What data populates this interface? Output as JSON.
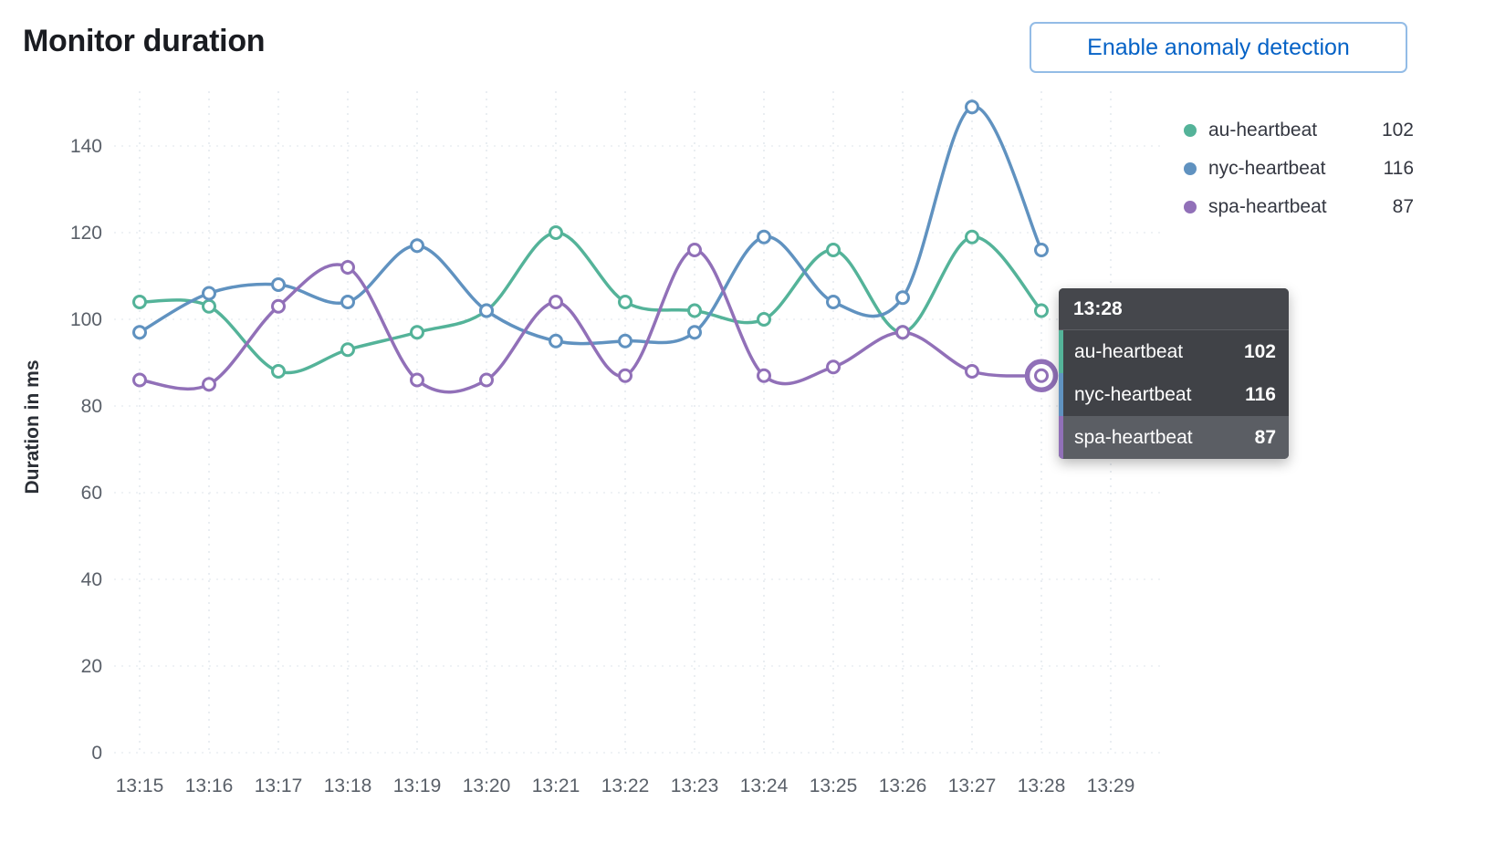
{
  "page": {
    "title": "Monitor duration",
    "button_label": "Enable anomaly detection"
  },
  "chart_data": {
    "type": "line",
    "title": "Monitor duration",
    "xlabel": "",
    "ylabel": "Duration in ms",
    "ylim": [
      0,
      150
    ],
    "y_ticks": [
      0,
      20,
      40,
      60,
      80,
      100,
      120,
      140
    ],
    "x_ticks": [
      "13:15",
      "13:16",
      "13:17",
      "13:18",
      "13:19",
      "13:20",
      "13:21",
      "13:22",
      "13:23",
      "13:24",
      "13:25",
      "13:26",
      "13:27",
      "13:28",
      "13:29"
    ],
    "x": [
      "13:15",
      "13:16",
      "13:17",
      "13:18",
      "13:19",
      "13:20",
      "13:21",
      "13:22",
      "13:23",
      "13:24",
      "13:25",
      "13:26",
      "13:27",
      "13:28"
    ],
    "grid": true,
    "legend_position": "right-top",
    "series": [
      {
        "name": "au-heartbeat",
        "color": "#54b399",
        "values": [
          104,
          103,
          88,
          93,
          97,
          102,
          120,
          104,
          102,
          100,
          116,
          97,
          119,
          102
        ]
      },
      {
        "name": "nyc-heartbeat",
        "color": "#6092c0",
        "values": [
          97,
          106,
          108,
          104,
          117,
          102,
          95,
          95,
          97,
          119,
          104,
          105,
          149,
          116
        ]
      },
      {
        "name": "spa-heartbeat",
        "color": "#9170b8",
        "values": [
          86,
          85,
          103,
          112,
          86,
          86,
          104,
          87,
          116,
          87,
          89,
          97,
          88,
          87
        ]
      }
    ],
    "highlight": {
      "series": "spa-heartbeat",
      "x": "13:28"
    }
  },
  "legend": {
    "items": [
      {
        "label": "au-heartbeat",
        "value": "102",
        "color": "#54b399"
      },
      {
        "label": "nyc-heartbeat",
        "value": "116",
        "color": "#6092c0"
      },
      {
        "label": "spa-heartbeat",
        "value": "87",
        "color": "#9170b8"
      }
    ]
  },
  "tooltip": {
    "header": "13:28",
    "rows": [
      {
        "label": "au-heartbeat",
        "value": "102",
        "color": "#54b399",
        "highlighted": false
      },
      {
        "label": "nyc-heartbeat",
        "value": "116",
        "color": "#6092c0",
        "highlighted": false
      },
      {
        "label": "spa-heartbeat",
        "value": "87",
        "color": "#9170b8",
        "highlighted": true
      }
    ]
  }
}
